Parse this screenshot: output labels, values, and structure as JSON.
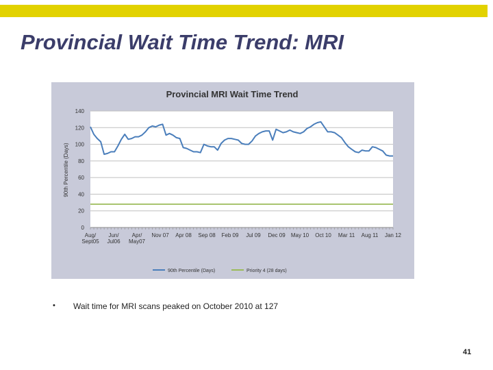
{
  "slide": {
    "title": "Provincial Wait Time Trend: MRI",
    "bullet": "Wait time for MRI scans peaked on October 2010 at 127",
    "page_number": "41",
    "bullet_symbol": "•"
  },
  "colors": {
    "accent_bar": "#e2d200",
    "title": "#3b3d6a",
    "chart_bg": "#c8cad9",
    "plot_bg": "#ffffff",
    "series_90th": "#4a7ebb",
    "series_priority4": "#9bbb59"
  },
  "chart_data": {
    "type": "line",
    "title": "Provincial MRI Wait Time Trend",
    "ylabel": "90th Percentile (Days)",
    "xlabel": "",
    "ylim": [
      0,
      140
    ],
    "yticks": [
      0,
      20,
      40,
      60,
      80,
      100,
      120,
      140
    ],
    "grid": true,
    "legend_position": "bottom",
    "x_tick_labels": [
      [
        "Aug/",
        "Sept05"
      ],
      [
        "Jun/",
        "Jul06"
      ],
      [
        "Apr/",
        "May07"
      ],
      [
        "Nov 07"
      ],
      [
        "Apr 08"
      ],
      [
        "Sep 08"
      ],
      [
        "Feb 09"
      ],
      [
        "Jul 09"
      ],
      [
        "Dec 09"
      ],
      [
        "May 10"
      ],
      [
        "Oct 10"
      ],
      [
        "Mar 11"
      ],
      [
        "Aug 11"
      ],
      [
        "Jan 12"
      ]
    ],
    "series": [
      {
        "name": "90th Percentile (Days)",
        "color": "#4a7ebb",
        "values": [
          121,
          112,
          107,
          103,
          88,
          89,
          91,
          91,
          98,
          106,
          112,
          106,
          107,
          109,
          109,
          111,
          115,
          120,
          122,
          121,
          123,
          124,
          111,
          113,
          111,
          108,
          107,
          96,
          95,
          93,
          91,
          91,
          90,
          100,
          98,
          97,
          97,
          93,
          101,
          105,
          107,
          107,
          106,
          105,
          101,
          100,
          100,
          104,
          110,
          113,
          115,
          116,
          116,
          105,
          118,
          116,
          114,
          115,
          117,
          115,
          114,
          113,
          115,
          119,
          121,
          124,
          126,
          127,
          121,
          115,
          115,
          114,
          111,
          108,
          102,
          97,
          94,
          91,
          90,
          93,
          92,
          92,
          97,
          96,
          94,
          92,
          87,
          86,
          86
        ]
      },
      {
        "name": "Priority 4 (28 days)",
        "color": "#9bbb59",
        "values": [
          28,
          28
        ]
      }
    ]
  }
}
